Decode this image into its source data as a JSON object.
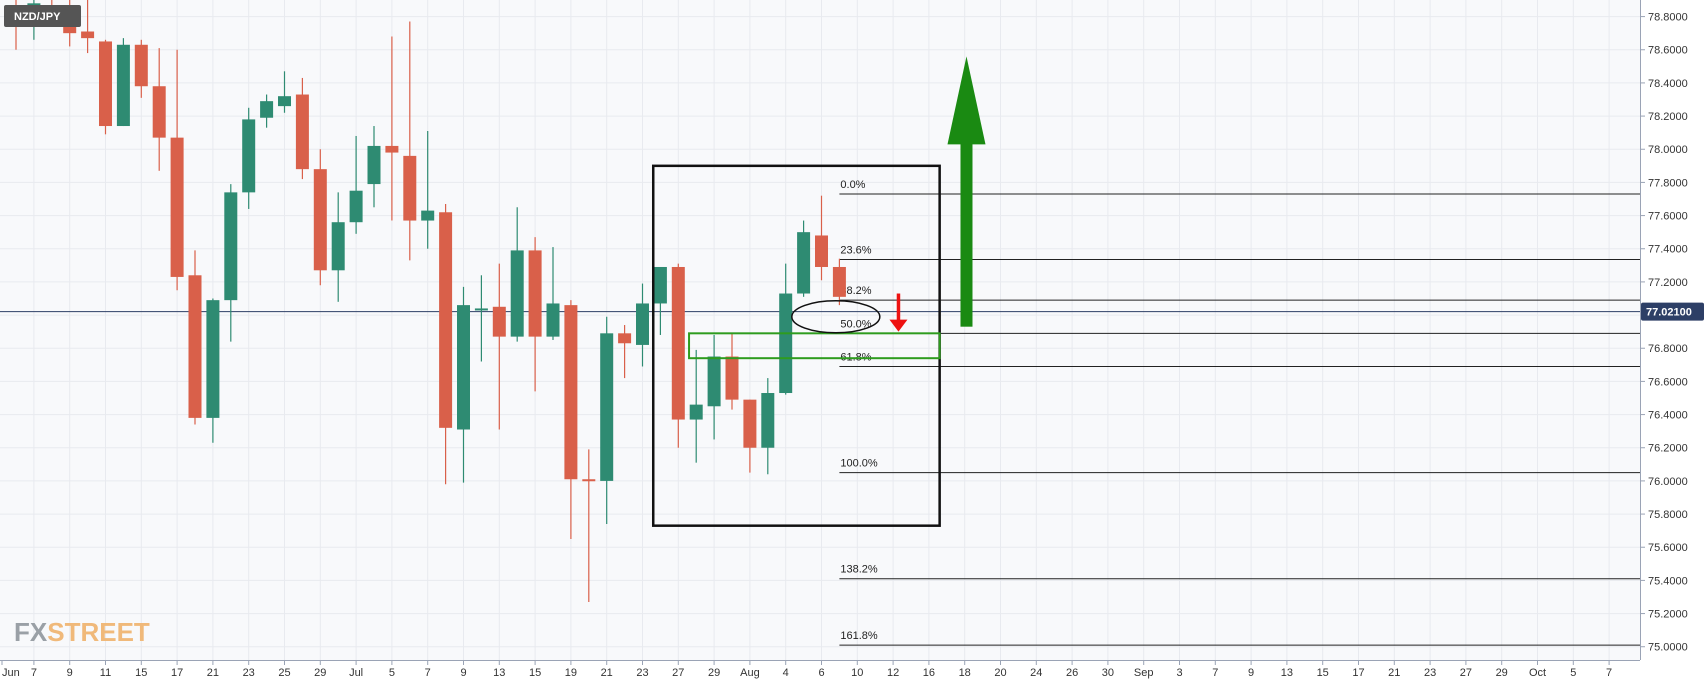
{
  "symbol": "NZD/JPY",
  "logo": {
    "fx": "FX",
    "street": "STREET"
  },
  "current_price": {
    "value": 77.021,
    "label": "77.02100"
  },
  "colors": {
    "up": "#2e8b72",
    "down": "#d9604a",
    "frame": "#111111",
    "zone": "#2e9c1e",
    "arrow_up": "#1a8a12",
    "arrow_down": "#ee1111",
    "badge": "#555555",
    "price_badge": "#2d3f66"
  },
  "chart_data": {
    "type": "candlestick",
    "title": "NZD/JPY",
    "ylim": [
      74.92,
      78.9
    ],
    "y_ticks": [
      75.0,
      75.2,
      75.4,
      75.6,
      75.8,
      76.0,
      76.2,
      76.4,
      76.6,
      76.8,
      77.0,
      77.2,
      77.4,
      77.6,
      77.8,
      78.0,
      78.2,
      78.4,
      78.6,
      78.8
    ],
    "y_tick_labels": [
      "75.0000",
      "75.2000",
      "75.4000",
      "75.6000",
      "75.8000",
      "76.0000",
      "76.2000",
      "76.4000",
      "76.6000",
      "76.8000",
      "77.0000",
      "77.2000",
      "77.4000",
      "77.6000",
      "77.8000",
      "78.0000",
      "78.2000",
      "78.4000",
      "78.6000",
      "78.8000"
    ],
    "x_labels": [
      {
        "slot": -0.3,
        "text": "Jun"
      },
      {
        "slot": 1,
        "text": "7"
      },
      {
        "slot": 3,
        "text": "9"
      },
      {
        "slot": 5,
        "text": "11"
      },
      {
        "slot": 7,
        "text": "15"
      },
      {
        "slot": 9,
        "text": "17"
      },
      {
        "slot": 11,
        "text": "21"
      },
      {
        "slot": 13,
        "text": "23"
      },
      {
        "slot": 15,
        "text": "25"
      },
      {
        "slot": 17,
        "text": "29"
      },
      {
        "slot": 19,
        "text": "Jul"
      },
      {
        "slot": 21,
        "text": "5"
      },
      {
        "slot": 23,
        "text": "7"
      },
      {
        "slot": 25,
        "text": "9"
      },
      {
        "slot": 27,
        "text": "13"
      },
      {
        "slot": 29,
        "text": "15"
      },
      {
        "slot": 31,
        "text": "19"
      },
      {
        "slot": 33,
        "text": "21"
      },
      {
        "slot": 35,
        "text": "23"
      },
      {
        "slot": 37,
        "text": "27"
      },
      {
        "slot": 39,
        "text": "29"
      },
      {
        "slot": 41,
        "text": "Aug"
      },
      {
        "slot": 43,
        "text": "4"
      },
      {
        "slot": 45,
        "text": "6"
      },
      {
        "slot": 47,
        "text": "10"
      },
      {
        "slot": 49,
        "text": "12"
      },
      {
        "slot": 51,
        "text": "16"
      },
      {
        "slot": 53,
        "text": "18"
      },
      {
        "slot": 55,
        "text": "20"
      },
      {
        "slot": 57,
        "text": "24"
      },
      {
        "slot": 59,
        "text": "26"
      },
      {
        "slot": 61,
        "text": "30"
      },
      {
        "slot": 63,
        "text": "Sep"
      },
      {
        "slot": 65,
        "text": "3"
      },
      {
        "slot": 67,
        "text": "7"
      },
      {
        "slot": 69,
        "text": "9"
      },
      {
        "slot": 71,
        "text": "13"
      },
      {
        "slot": 73,
        "text": "15"
      },
      {
        "slot": 75,
        "text": "17"
      },
      {
        "slot": 77,
        "text": "21"
      },
      {
        "slot": 79,
        "text": "23"
      },
      {
        "slot": 81,
        "text": "27"
      },
      {
        "slot": 83,
        "text": "29"
      },
      {
        "slot": 85,
        "text": "Oct"
      },
      {
        "slot": 87,
        "text": "5"
      },
      {
        "slot": 89,
        "text": "7"
      }
    ],
    "candles": [
      {
        "o": 78.86,
        "h": 78.93,
        "l": 78.6,
        "c": 78.8
      },
      {
        "o": 78.8,
        "h": 78.97,
        "l": 78.66,
        "c": 78.88
      },
      {
        "o": 78.85,
        "h": 78.92,
        "l": 78.78,
        "c": 78.84
      },
      {
        "o": 78.86,
        "h": 78.93,
        "l": 78.62,
        "c": 78.7
      },
      {
        "o": 78.71,
        "h": 78.97,
        "l": 78.58,
        "c": 78.67
      },
      {
        "o": 78.65,
        "h": 78.66,
        "l": 78.09,
        "c": 78.14
      },
      {
        "o": 78.14,
        "h": 78.67,
        "l": 78.14,
        "c": 78.63
      },
      {
        "o": 78.63,
        "h": 78.66,
        "l": 78.31,
        "c": 78.38
      },
      {
        "o": 78.38,
        "h": 78.61,
        "l": 77.87,
        "c": 78.07
      },
      {
        "o": 78.07,
        "h": 78.6,
        "l": 77.15,
        "c": 77.23
      },
      {
        "o": 77.24,
        "h": 77.39,
        "l": 76.34,
        "c": 76.38
      },
      {
        "o": 76.38,
        "h": 77.1,
        "l": 76.23,
        "c": 77.09
      },
      {
        "o": 77.09,
        "h": 77.79,
        "l": 76.84,
        "c": 77.74
      },
      {
        "o": 77.74,
        "h": 78.25,
        "l": 77.64,
        "c": 78.18
      },
      {
        "o": 78.19,
        "h": 78.33,
        "l": 78.13,
        "c": 78.29
      },
      {
        "o": 78.26,
        "h": 78.47,
        "l": 78.22,
        "c": 78.32
      },
      {
        "o": 78.33,
        "h": 78.43,
        "l": 77.82,
        "c": 77.88
      },
      {
        "o": 77.88,
        "h": 78.0,
        "l": 77.18,
        "c": 77.27
      },
      {
        "o": 77.27,
        "h": 77.74,
        "l": 77.08,
        "c": 77.56
      },
      {
        "o": 77.56,
        "h": 78.08,
        "l": 77.49,
        "c": 77.75
      },
      {
        "o": 77.79,
        "h": 78.14,
        "l": 77.65,
        "c": 78.02
      },
      {
        "o": 78.02,
        "h": 78.68,
        "l": 77.57,
        "c": 77.98
      },
      {
        "o": 77.96,
        "h": 78.77,
        "l": 77.33,
        "c": 77.57
      },
      {
        "o": 77.57,
        "h": 78.11,
        "l": 77.4,
        "c": 77.63
      },
      {
        "o": 77.62,
        "h": 77.67,
        "l": 75.98,
        "c": 76.32
      },
      {
        "o": 76.31,
        "h": 77.17,
        "l": 75.99,
        "c": 77.06
      },
      {
        "o": 77.03,
        "h": 77.24,
        "l": 76.72,
        "c": 77.04
      },
      {
        "o": 77.05,
        "h": 77.31,
        "l": 76.31,
        "c": 76.87
      },
      {
        "o": 76.87,
        "h": 77.65,
        "l": 76.84,
        "c": 77.39
      },
      {
        "o": 77.39,
        "h": 77.47,
        "l": 76.54,
        "c": 76.87
      },
      {
        "o": 76.87,
        "h": 77.41,
        "l": 76.85,
        "c": 77.07
      },
      {
        "o": 77.06,
        "h": 77.09,
        "l": 75.65,
        "c": 76.01
      },
      {
        "o": 76.01,
        "h": 76.19,
        "l": 75.27,
        "c": 76.0
      },
      {
        "o": 76.0,
        "h": 76.99,
        "l": 75.74,
        "c": 76.89
      },
      {
        "o": 76.89,
        "h": 76.94,
        "l": 76.62,
        "c": 76.83
      },
      {
        "o": 76.82,
        "h": 77.19,
        "l": 76.69,
        "c": 77.07
      },
      {
        "o": 77.07,
        "h": 77.28,
        "l": 76.88,
        "c": 77.29
      },
      {
        "o": 77.29,
        "h": 77.31,
        "l": 76.2,
        "c": 76.37
      },
      {
        "o": 76.37,
        "h": 76.79,
        "l": 76.11,
        "c": 76.46
      },
      {
        "o": 76.45,
        "h": 76.88,
        "l": 76.25,
        "c": 76.75
      },
      {
        "o": 76.75,
        "h": 76.89,
        "l": 76.43,
        "c": 76.49
      },
      {
        "o": 76.49,
        "h": 76.49,
        "l": 76.05,
        "c": 76.2
      },
      {
        "o": 76.2,
        "h": 76.62,
        "l": 76.04,
        "c": 76.53
      },
      {
        "o": 76.53,
        "h": 77.31,
        "l": 76.52,
        "c": 77.13
      },
      {
        "o": 77.13,
        "h": 77.57,
        "l": 77.11,
        "c": 77.5
      },
      {
        "o": 77.48,
        "h": 77.72,
        "l": 77.21,
        "c": 77.29
      },
      {
        "o": 77.29,
        "h": 77.34,
        "l": 77.06,
        "c": 77.11
      }
    ],
    "fibonacci": [
      {
        "label": "0.0%",
        "value": 77.73
      },
      {
        "label": "23.6%",
        "value": 77.335
      },
      {
        "label": "38.2%",
        "value": 77.09
      },
      {
        "label": "50.0%",
        "value": 76.89
      },
      {
        "label": "61.8%",
        "value": 76.69
      },
      {
        "label": "100.0%",
        "value": 76.05
      },
      {
        "label": "138.2%",
        "value": 75.41
      },
      {
        "label": "161.8%",
        "value": 75.01
      }
    ],
    "annotations": {
      "frame": {
        "slot_from": 35.6,
        "slot_to": 51.6,
        "y_top": 77.9,
        "y_bottom": 75.73
      },
      "zone": {
        "slot_from": 37.6,
        "slot_to": 51.6,
        "y_top": 76.89,
        "y_bottom": 76.74
      },
      "ellipse": {
        "slot": 45.8,
        "value": 76.99
      },
      "arrow_down": {
        "slot": 49.3,
        "from": 77.13,
        "to": 76.9
      },
      "arrow_up": {
        "slot": 53.1,
        "from": 76.93,
        "to": 78.56
      }
    }
  }
}
